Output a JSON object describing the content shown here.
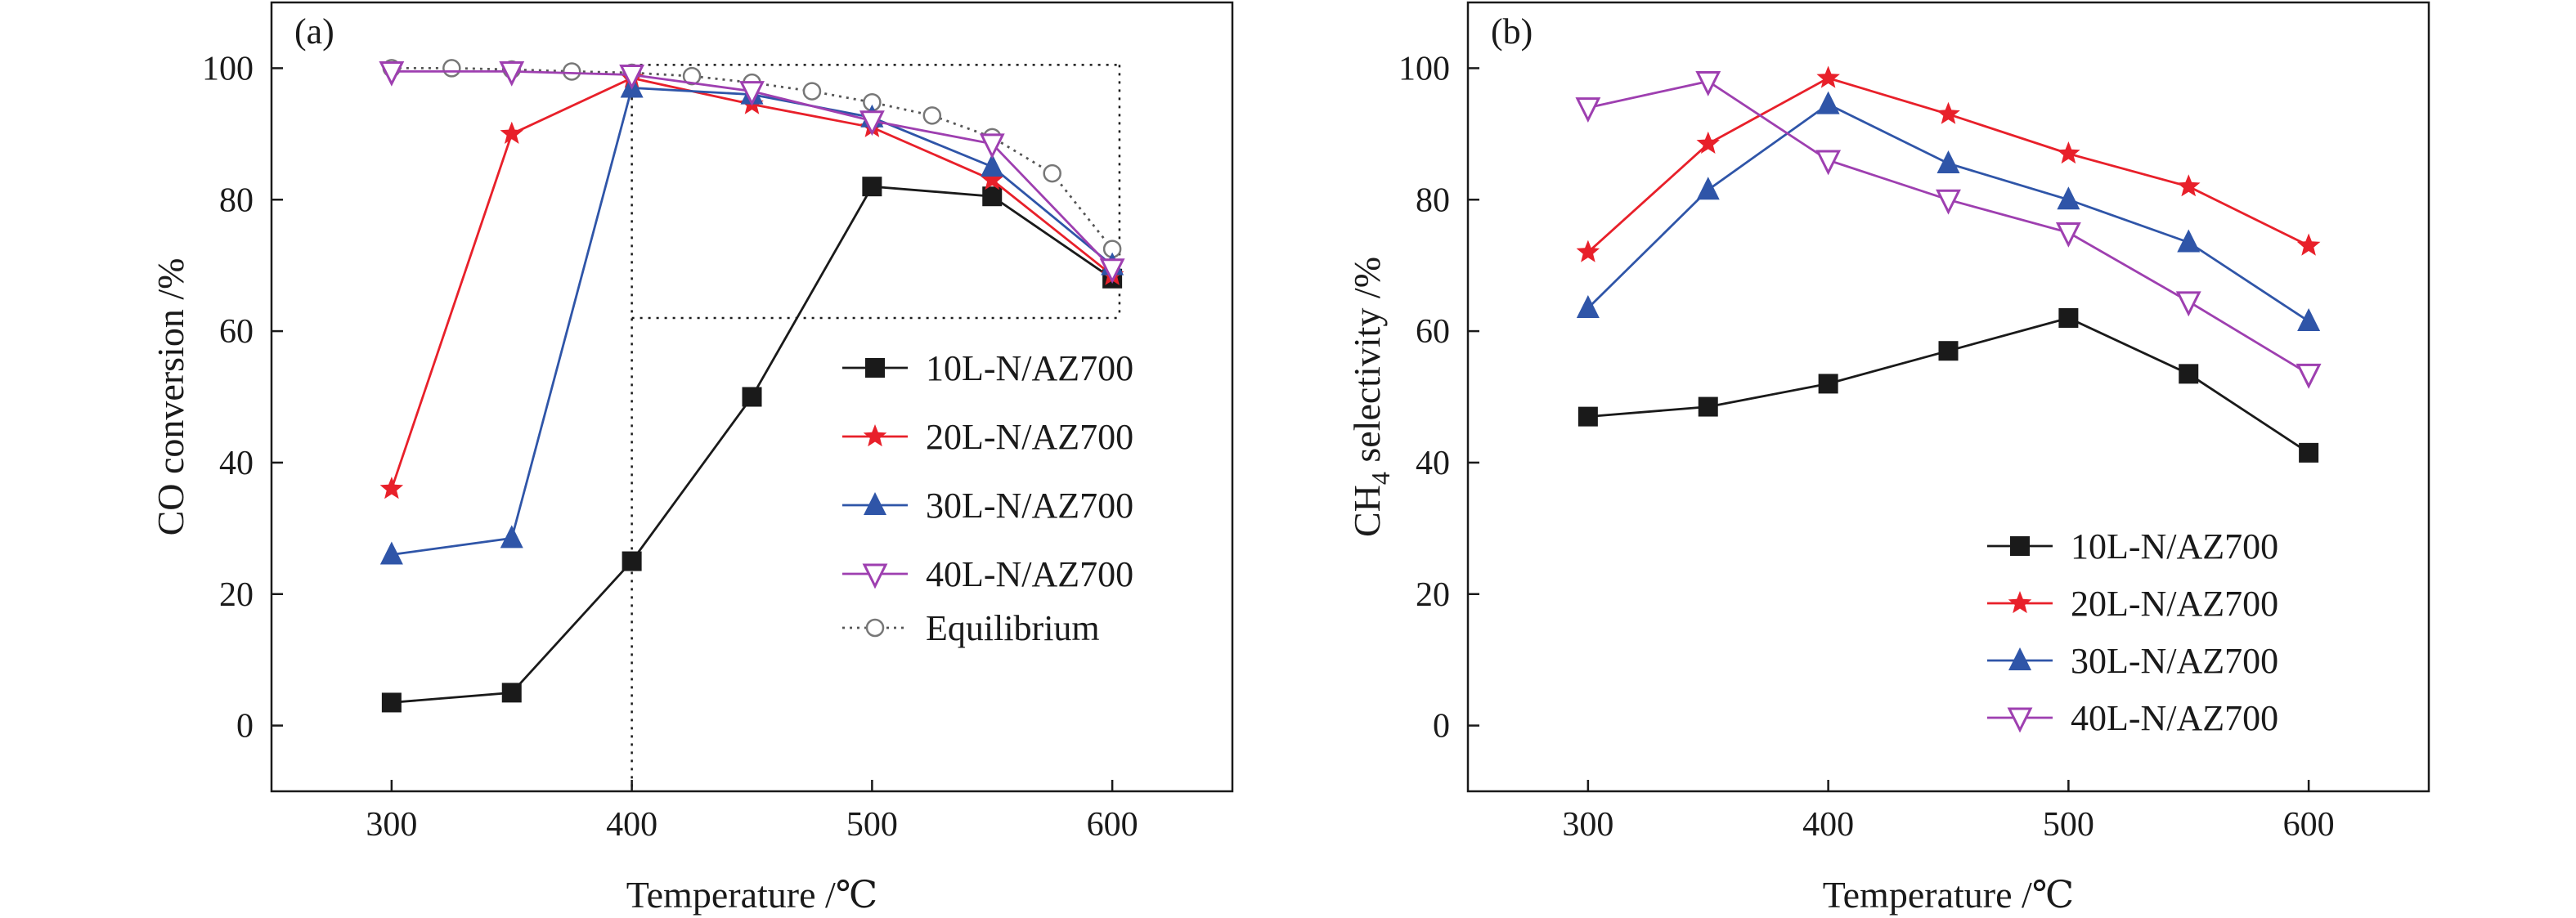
{
  "chart_data": [
    {
      "type": "line",
      "panel_label": "(a)",
      "xlabel": "Temperature /℃",
      "ylabel": "CO conversion /%",
      "xlim": [
        250,
        650
      ],
      "ylim": [
        -10,
        110
      ],
      "xticks": [
        300,
        400,
        500,
        600
      ],
      "yticks": [
        0,
        20,
        40,
        60,
        80,
        100
      ],
      "x_tick_labels": [
        "300",
        "400",
        "500",
        "600"
      ],
      "y_tick_labels": [
        "0",
        "20",
        "40",
        "60",
        "80",
        "100"
      ],
      "grid": false,
      "legend_placement": "center-right",
      "zoom_box": {
        "x_range": [
          400,
          603
        ],
        "y_range": [
          62,
          100.5
        ]
      },
      "series": [
        {
          "name": "10L-N/AZ700",
          "color": "#1a1a1a",
          "marker": "square",
          "line": "solid",
          "x": [
            300,
            350,
            400,
            450,
            500,
            550,
            600
          ],
          "y": [
            3.5,
            5,
            25,
            50,
            82,
            80.5,
            68
          ]
        },
        {
          "name": "20L-N/AZ700",
          "color": "#e8202a",
          "marker": "star",
          "line": "solid",
          "x": [
            300,
            350,
            400,
            450,
            500,
            550,
            600
          ],
          "y": [
            36,
            90,
            98.5,
            94.5,
            91,
            83,
            68.5
          ]
        },
        {
          "name": "30L-N/AZ700",
          "color": "#2f55a8",
          "marker": "triangle-up",
          "line": "solid",
          "x": [
            300,
            350,
            400,
            450,
            500,
            550,
            600
          ],
          "y": [
            26,
            28.5,
            97,
            96,
            92.5,
            85,
            70
          ]
        },
        {
          "name": "40L-N/AZ700",
          "color": "#9e3fb0",
          "marker": "triangle-down-open",
          "line": "solid",
          "x": [
            300,
            350,
            400,
            450,
            500,
            550,
            600
          ],
          "y": [
            99.5,
            99.5,
            99,
            96.5,
            92,
            88.5,
            69.5
          ]
        },
        {
          "name": "Equilibrium",
          "color": "#555555",
          "marker": "circle-open",
          "line": "dotted",
          "x": [
            300,
            325,
            350,
            375,
            400,
            425,
            450,
            475,
            500,
            525,
            550,
            575,
            600
          ],
          "y": [
            100,
            100,
            99.8,
            99.5,
            99.3,
            98.8,
            97.8,
            96.5,
            94.8,
            92.8,
            89.5,
            84,
            72.5
          ]
        }
      ]
    },
    {
      "type": "line",
      "panel_label": "(b)",
      "xlabel": "Temperature /℃",
      "ylabel": "CH4 selectivity /%",
      "ylabel_main": "CH",
      "ylabel_sub": "4",
      "ylabel_rest": " selectivity /%",
      "xlim": [
        250,
        650
      ],
      "ylim": [
        -10,
        110
      ],
      "xticks": [
        300,
        400,
        500,
        600
      ],
      "yticks": [
        0,
        20,
        40,
        60,
        80,
        100
      ],
      "x_tick_labels": [
        "300",
        "400",
        "500",
        "600"
      ],
      "y_tick_labels": [
        "0",
        "20",
        "40",
        "60",
        "80",
        "100"
      ],
      "grid": false,
      "legend_placement": "bottom-right",
      "series": [
        {
          "name": "10L-N/AZ700",
          "color": "#1a1a1a",
          "marker": "square",
          "line": "solid",
          "x": [
            300,
            350,
            400,
            450,
            500,
            550,
            600
          ],
          "y": [
            47,
            48.5,
            52,
            57,
            62,
            53.5,
            41.5
          ]
        },
        {
          "name": "20L-N/AZ700",
          "color": "#e8202a",
          "marker": "star",
          "line": "solid",
          "x": [
            300,
            350,
            400,
            450,
            500,
            550,
            600
          ],
          "y": [
            72,
            88.5,
            98.5,
            93,
            87,
            82,
            73
          ]
        },
        {
          "name": "30L-N/AZ700",
          "color": "#2f55a8",
          "marker": "triangle-up",
          "line": "solid",
          "x": [
            300,
            350,
            400,
            450,
            500,
            550,
            600
          ],
          "y": [
            63.5,
            81.5,
            94.5,
            85.5,
            80,
            73.5,
            61.5
          ]
        },
        {
          "name": "40L-N/AZ700",
          "color": "#9e3fb0",
          "marker": "triangle-down-open",
          "line": "solid",
          "x": [
            300,
            350,
            400,
            450,
            500,
            550,
            600
          ],
          "y": [
            94,
            98,
            86,
            80,
            75,
            64.5,
            53.5
          ]
        }
      ]
    }
  ]
}
